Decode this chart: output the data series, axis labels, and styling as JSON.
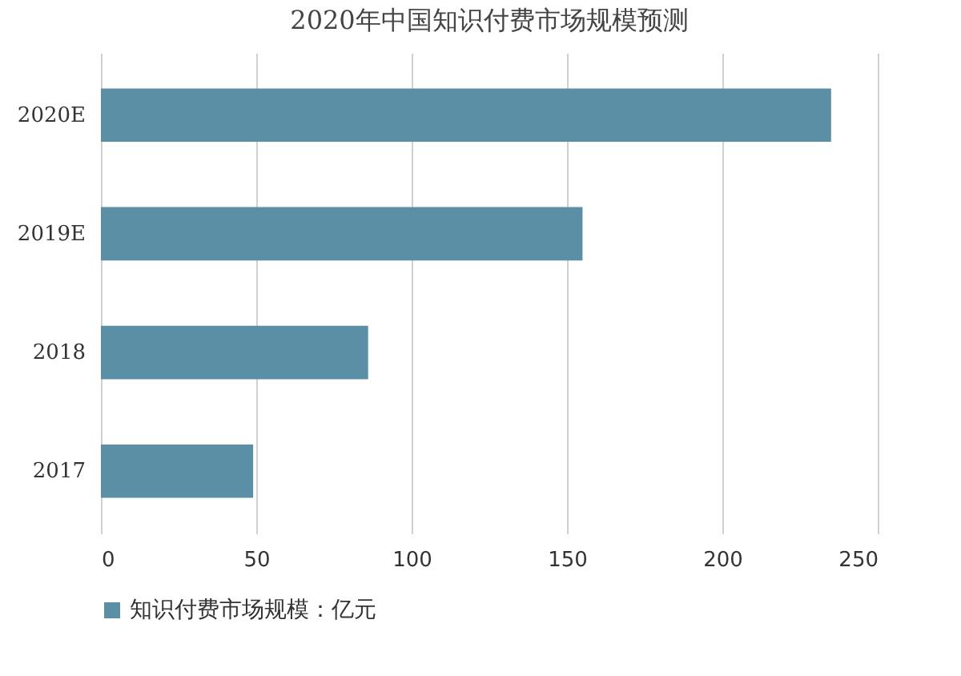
{
  "chart_data": {
    "type": "bar",
    "orientation": "horizontal",
    "title": "2020年中国知识付费市场规模预测",
    "categories": [
      "2020E",
      "2019E",
      "2018",
      "2017"
    ],
    "series": [
      {
        "name": "知识付费市场规模：亿元",
        "color": "#5b8fa5",
        "values": [
          235,
          155,
          86,
          49
        ]
      }
    ],
    "xlim": [
      0,
      250
    ],
    "xticks": [
      0,
      50,
      100,
      150,
      200,
      250
    ],
    "grid": "x",
    "legend": "bottom"
  }
}
